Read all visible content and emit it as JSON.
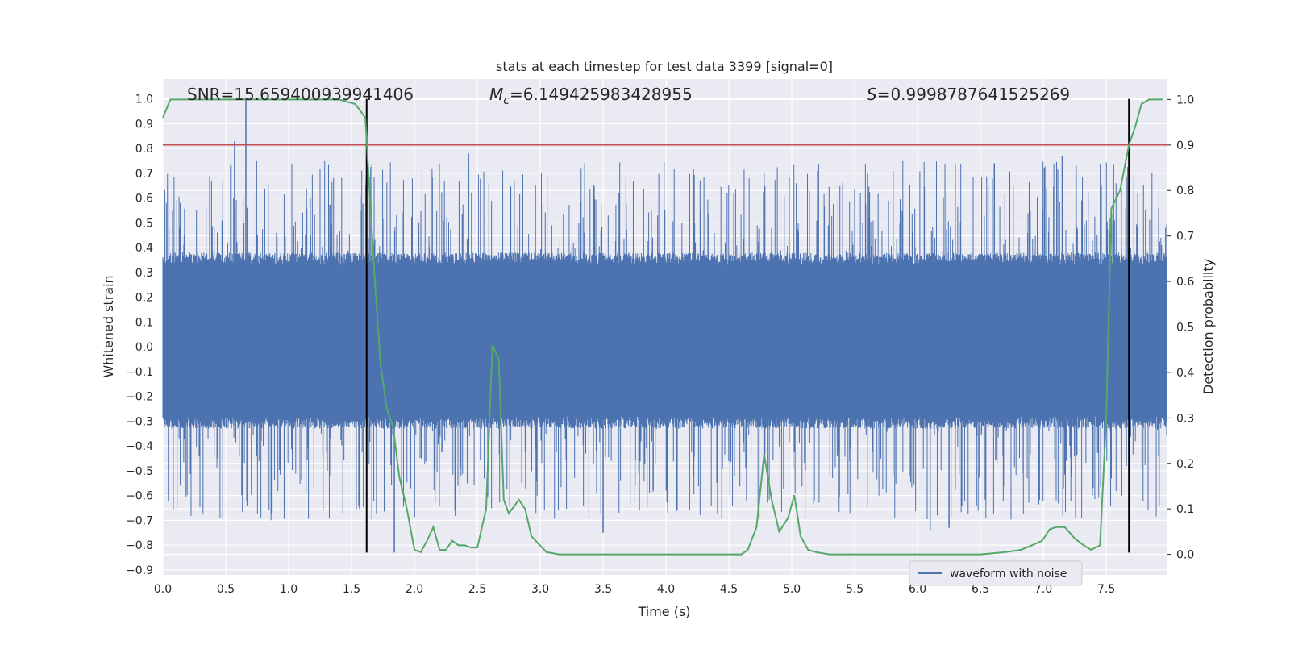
{
  "chart_data": {
    "type": "line",
    "title": "stats at each timestep for test data 3399 [signal=0]",
    "xlabel": "Time (s)",
    "ylabel": "Whitened strain",
    "y2label": "Detection probability",
    "xlim": [
      0.0,
      7.98
    ],
    "ylim": [
      -0.92,
      1.08
    ],
    "y2lim": [
      -0.045,
      1.045
    ],
    "xticks": [
      "0.0",
      "0.5",
      "1.0",
      "1.5",
      "2.0",
      "2.5",
      "3.0",
      "3.5",
      "4.0",
      "4.5",
      "5.0",
      "5.5",
      "6.0",
      "6.5",
      "7.0",
      "7.5"
    ],
    "yticks": [
      "1.0",
      "0.9",
      "0.8",
      "0.7",
      "0.6",
      "0.5",
      "0.4",
      "0.3",
      "0.2",
      "0.1",
      "0.0",
      "−0.1",
      "−0.2",
      "−0.3",
      "−0.4",
      "−0.5",
      "−0.6",
      "−0.7",
      "−0.8",
      "−0.9"
    ],
    "y2ticks": [
      "1.0",
      "0.9",
      "0.8",
      "0.7",
      "0.6",
      "0.5",
      "0.4",
      "0.3",
      "0.2",
      "0.1",
      "0.0"
    ],
    "grid": true,
    "legend_position": "lower right",
    "annotations": {
      "snr": "SNR=15.659400939941406",
      "mc_symbol": "M",
      "mc_sub": "c",
      "mc_value": "=6.149425983428955",
      "s_symbol": "S",
      "s_value": "=0.9998787641525269"
    },
    "threshold_line": {
      "axis": "y2",
      "value": 0.9,
      "color": "#c44e52"
    },
    "vertical_markers": [
      {
        "x": 1.62,
        "ymin": -0.83,
        "ymax": 1.0
      },
      {
        "x": 7.68,
        "ymin": -0.83,
        "ymax": 1.0
      }
    ],
    "series": [
      {
        "name": "waveform with noise",
        "axis": "y",
        "color": "#4c72b0",
        "envelope": {
          "core_band": [
            -0.28,
            0.33
          ],
          "spike_range_up": [
            0.35,
            0.75
          ],
          "spike_range_down": [
            -0.3,
            -0.7
          ],
          "notable_spikes": [
            {
              "x": 0.66,
              "y": 1.0
            },
            {
              "x": 0.57,
              "y": 0.83
            },
            {
              "x": 1.84,
              "y": -0.83
            },
            {
              "x": 2.43,
              "y": 0.78
            },
            {
              "x": 3.5,
              "y": -0.75
            },
            {
              "x": 6.1,
              "y": -0.74
            },
            {
              "x": 6.25,
              "y": -0.73
            },
            {
              "x": 6.61,
              "y": 0.74
            },
            {
              "x": 7.15,
              "y": 0.77
            },
            {
              "x": 7.26,
              "y": 0.73
            }
          ]
        }
      },
      {
        "axis": "y2",
        "color": "#55a868",
        "x": [
          0.0,
          0.06,
          0.2,
          0.4,
          0.6,
          0.8,
          1.0,
          1.2,
          1.4,
          1.53,
          1.61,
          1.63,
          1.66,
          1.69,
          1.73,
          1.78,
          1.83,
          1.88,
          1.94,
          2.0,
          2.05,
          2.1,
          2.15,
          2.2,
          2.25,
          2.3,
          2.35,
          2.4,
          2.45,
          2.5,
          2.57,
          2.62,
          2.67,
          2.71,
          2.75,
          2.83,
          2.88,
          2.93,
          2.98,
          3.05,
          3.15,
          3.3,
          3.5,
          3.7,
          3.9,
          4.1,
          4.3,
          4.5,
          4.6,
          4.65,
          4.72,
          4.78,
          4.84,
          4.9,
          4.97,
          5.02,
          5.07,
          5.13,
          5.19,
          5.3,
          5.6,
          5.8,
          6.1,
          6.3,
          6.5,
          6.7,
          6.82,
          6.91,
          6.99,
          7.05,
          7.1,
          7.17,
          7.25,
          7.32,
          7.38,
          7.45,
          7.5,
          7.54,
          7.61,
          7.68,
          7.73,
          7.78,
          7.84,
          7.9,
          7.95
        ],
        "values": [
          0.96,
          1.0,
          1.0,
          1.0,
          1.0,
          1.0,
          1.0,
          1.0,
          1.0,
          0.99,
          0.96,
          0.86,
          0.72,
          0.58,
          0.42,
          0.32,
          0.28,
          0.17,
          0.1,
          0.01,
          0.005,
          0.03,
          0.06,
          0.01,
          0.01,
          0.03,
          0.02,
          0.02,
          0.015,
          0.015,
          0.1,
          0.46,
          0.43,
          0.12,
          0.09,
          0.12,
          0.1,
          0.04,
          0.025,
          0.005,
          0.0,
          0.0,
          0.0,
          0.0,
          0.0,
          0.0,
          0.0,
          0.0,
          0.0,
          0.01,
          0.06,
          0.22,
          0.12,
          0.05,
          0.08,
          0.13,
          0.04,
          0.01,
          0.005,
          0.0,
          0.0,
          0.0,
          0.0,
          0.0,
          0.0,
          0.005,
          0.01,
          0.02,
          0.03,
          0.055,
          0.06,
          0.06,
          0.035,
          0.02,
          0.01,
          0.02,
          0.3,
          0.76,
          0.8,
          0.9,
          0.94,
          0.99,
          1.0,
          1.0,
          1.0
        ]
      }
    ]
  }
}
